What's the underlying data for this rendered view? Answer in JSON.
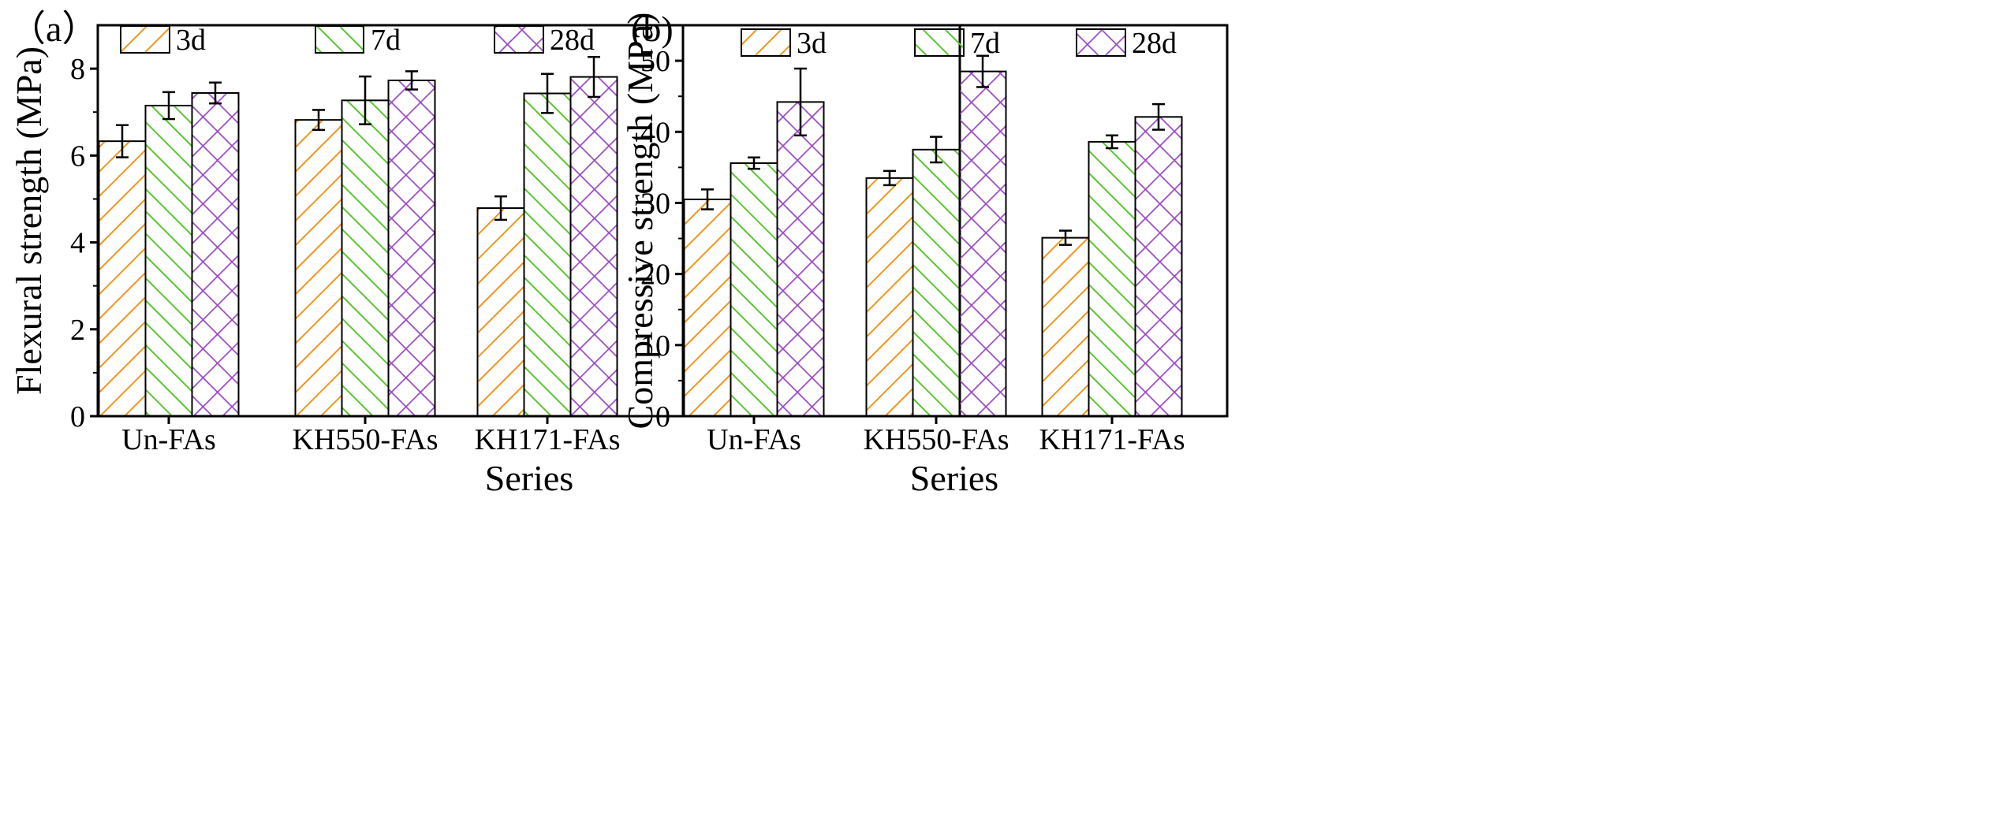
{
  "colors": {
    "3d": "#f0961e",
    "7d": "#5cc531",
    "28d": "#9b4bc3",
    "axis": "#000000",
    "error_bar": "#000000"
  },
  "chart_data": [
    {
      "type": "bar",
      "panel_label": "（a）",
      "categories": [
        "Un-FAs",
        "KH550-FAs",
        "KH171-FAs"
      ],
      "series": [
        {
          "name": "3d",
          "values": [
            6.33,
            6.82,
            4.79
          ],
          "errors": [
            0.37,
            0.23,
            0.27
          ]
        },
        {
          "name": "7d",
          "values": [
            7.15,
            7.27,
            7.43
          ],
          "errors": [
            0.31,
            0.55,
            0.45
          ]
        },
        {
          "name": "28d",
          "values": [
            7.44,
            7.73,
            7.81
          ],
          "errors": [
            0.24,
            0.21,
            0.46
          ]
        }
      ],
      "title": "",
      "xlabel": "Series",
      "ylabel": "Flexural strength (MPa)",
      "ylim": [
        0,
        9
      ],
      "yticks": [
        0,
        2,
        4,
        6,
        8
      ],
      "legend": "top, horizontal"
    },
    {
      "type": "bar",
      "panel_label": "(b)",
      "categories": [
        "Un-FAs",
        "KH550-FAs",
        "KH171-FAs"
      ],
      "series": [
        {
          "name": "3d",
          "values": [
            30.5,
            33.5,
            25.1
          ],
          "errors": [
            1.4,
            1.0,
            1.0
          ]
        },
        {
          "name": "7d",
          "values": [
            35.6,
            37.5,
            38.6
          ],
          "errors": [
            0.8,
            1.8,
            0.9
          ]
        },
        {
          "name": "28d",
          "values": [
            44.2,
            48.5,
            42.1
          ],
          "errors": [
            4.7,
            2.2,
            1.8
          ]
        }
      ],
      "title": "",
      "xlabel": "Series",
      "ylabel": "Compressive strength (MPa)",
      "ylim": [
        0,
        55
      ],
      "yticks": [
        0,
        10,
        20,
        30,
        40,
        50
      ],
      "legend": "top, horizontal"
    }
  ]
}
